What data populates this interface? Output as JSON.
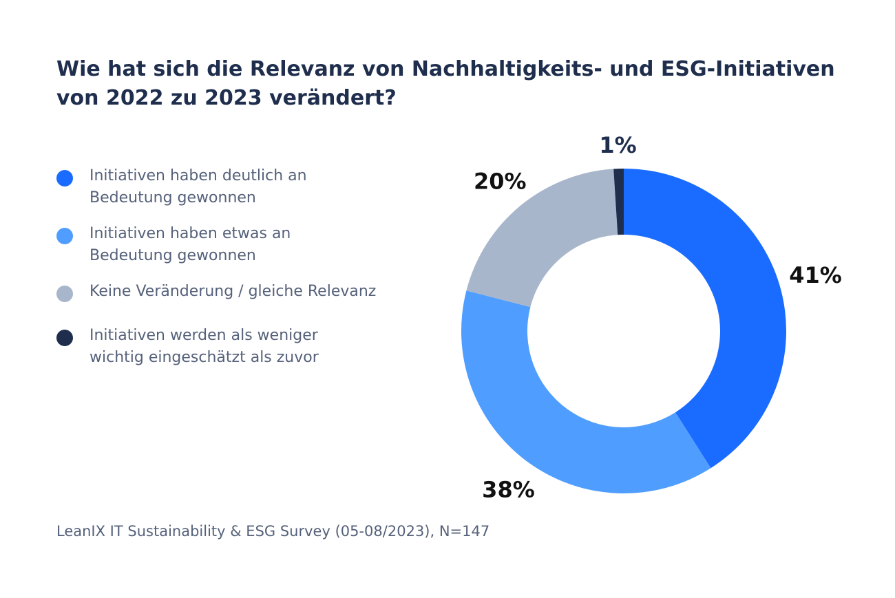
{
  "title": {
    "line1": "Wie hat sich die Relevanz von Nachhaltigkeits- und ESG-Initiativen",
    "line2": "von 2022 zu 2023 verändert?"
  },
  "legend": [
    {
      "line1": "Initiativen haben deutlich an",
      "line2": "Bedeutung gewonnen",
      "color": "#1a6bff"
    },
    {
      "line1": "Initiativen haben etwas an",
      "line2": "Bedeutung gewonnen",
      "color": "#4f9eff"
    },
    {
      "line1": "Keine Veränderung / gleiche Relevanz",
      "line2": "",
      "color": "#a8b6cb"
    },
    {
      "line1": "Initiativen werden als weniger",
      "line2": "wichtig eingeschätzt als zuvor",
      "color": "#1f2e4d"
    }
  ],
  "chart_data": {
    "type": "pie",
    "variant": "donut",
    "title": "Wie hat sich die Relevanz von Nachhaltigkeits- und ESG-Initiativen von 2022 zu 2023 verändert?",
    "categories": [
      "Initiativen haben deutlich an Bedeutung gewonnen",
      "Initiativen haben etwas an Bedeutung gewonnen",
      "Keine Veränderung / gleiche Relevanz",
      "Initiativen werden als weniger wichtig eingeschätzt als zuvor"
    ],
    "values": [
      41,
      38,
      20,
      1
    ],
    "labels": [
      "41%",
      "38%",
      "20%",
      "1%"
    ],
    "colors": [
      "#1a6bff",
      "#4f9eff",
      "#a8b6cb",
      "#1f2e4d"
    ],
    "unit": "%",
    "start": "top",
    "direction": "clockwise",
    "legend_position": "left"
  },
  "source": "LeanIX IT Sustainability & ESG Survey (05-08/2023), N=147"
}
